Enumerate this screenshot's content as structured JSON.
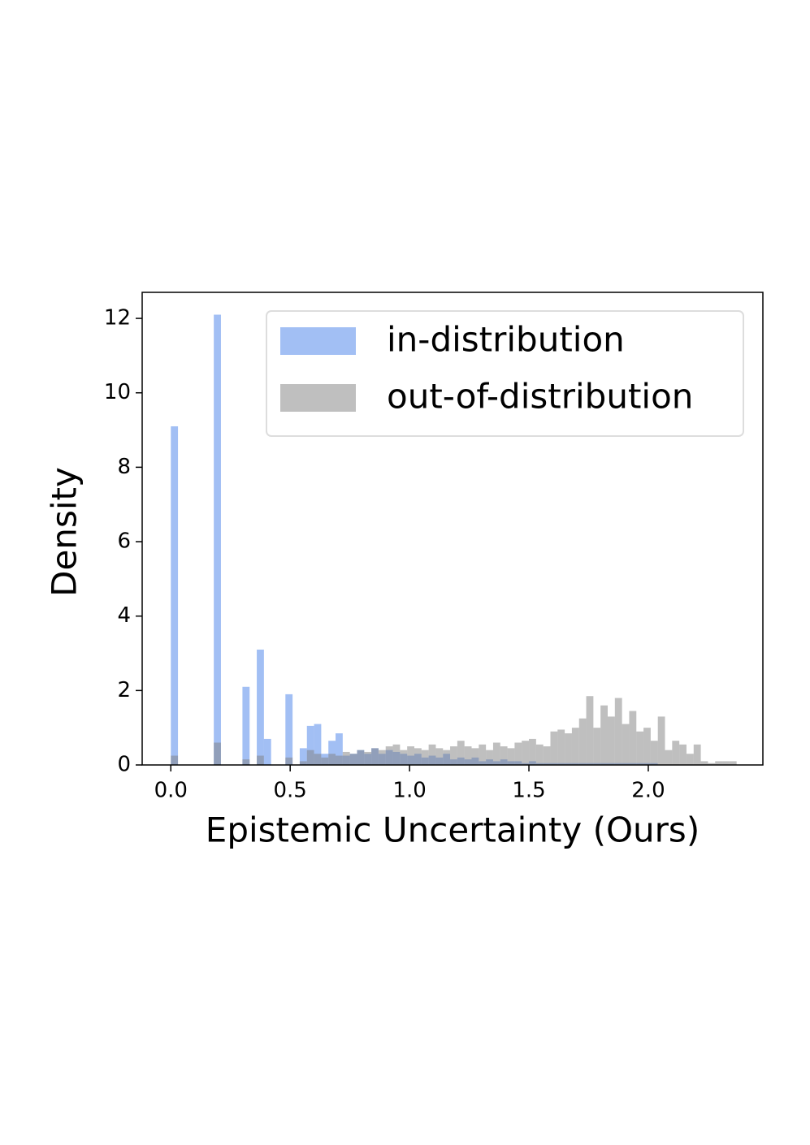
{
  "chart_data": {
    "type": "histogram",
    "xlabel": "Epistemic Uncertainty (Ours)",
    "ylabel": "Density",
    "bins": [
      0,
      0.03,
      0.06,
      0.09,
      0.12,
      0.15,
      0.18,
      0.21,
      0.24,
      0.27,
      0.3,
      0.33,
      0.36,
      0.39,
      0.42,
      0.45,
      0.48,
      0.51,
      0.54,
      0.57,
      0.6,
      0.63,
      0.66,
      0.69,
      0.72,
      0.75,
      0.78,
      0.81,
      0.84,
      0.87,
      0.9,
      0.93,
      0.96,
      0.99,
      1.02,
      1.05,
      1.08,
      1.11,
      1.14,
      1.17,
      1.2,
      1.23,
      1.26,
      1.29,
      1.32,
      1.35,
      1.38,
      1.41,
      1.44,
      1.47,
      1.5,
      1.53,
      1.56,
      1.59,
      1.62,
      1.65,
      1.68,
      1.71,
      1.74,
      1.77,
      1.8,
      1.83,
      1.86,
      1.89,
      1.92,
      1.95,
      1.98,
      2.01,
      2.04,
      2.07,
      2.1,
      2.13,
      2.16,
      2.19,
      2.22,
      2.25,
      2.28,
      2.31,
      2.34,
      2.37,
      2.4
    ],
    "series": [
      {
        "name": "in-distribution",
        "color": "#6495ed",
        "opacity": 0.6,
        "values": [
          9.1,
          0,
          0,
          0,
          0,
          0,
          12.1,
          0,
          0,
          0,
          2.1,
          0,
          3.1,
          0.7,
          0,
          0,
          1.9,
          0,
          0.45,
          1.05,
          1.1,
          0.3,
          0.65,
          0.85,
          0.25,
          0.3,
          0.4,
          0.3,
          0.45,
          0.3,
          0.4,
          0.35,
          0.3,
          0.25,
          0.3,
          0.2,
          0.25,
          0.2,
          0.3,
          0.15,
          0.2,
          0.15,
          0.2,
          0.1,
          0.15,
          0.1,
          0.15,
          0.1,
          0.1,
          0.05,
          0.1,
          0.05,
          0.05,
          0.05,
          0.05,
          0.05,
          0.05,
          0.05,
          0.05,
          0.05,
          0.05,
          0.05,
          0.05,
          0.05,
          0.05,
          0.05,
          0.05,
          0.05,
          0,
          0,
          0,
          0,
          0,
          0,
          0,
          0,
          0,
          0,
          0,
          0
        ]
      },
      {
        "name": "out-of-distribution",
        "color": "#808080",
        "opacity": 0.5,
        "values": [
          0.25,
          0,
          0,
          0,
          0,
          0,
          0.6,
          0,
          0,
          0,
          0.15,
          0,
          0.25,
          0,
          0,
          0,
          0.2,
          0,
          0.1,
          0.4,
          0.3,
          0.2,
          0.3,
          0.25,
          0.35,
          0.3,
          0.4,
          0.35,
          0.45,
          0.4,
          0.5,
          0.55,
          0.4,
          0.5,
          0.45,
          0.4,
          0.55,
          0.45,
          0.4,
          0.5,
          0.65,
          0.5,
          0.45,
          0.55,
          0.4,
          0.6,
          0.5,
          0.45,
          0.6,
          0.65,
          0.7,
          0.55,
          0.5,
          0.9,
          0.95,
          0.85,
          1.0,
          1.25,
          1.85,
          1.0,
          1.6,
          1.3,
          1.8,
          1.1,
          1.45,
          0.9,
          1.0,
          0.65,
          1.3,
          0.4,
          0.65,
          0.55,
          0.3,
          0.55,
          0.1,
          0.05,
          0.1,
          0.1,
          0.1,
          0
        ]
      }
    ],
    "xlim": [
      -0.12,
      2.48
    ],
    "xticks": [
      {
        "value": 0,
        "label": "0.0"
      },
      0.5,
      {
        "value": 1,
        "label": "1.0"
      },
      1.5,
      {
        "value": 2,
        "label": "2.0"
      }
    ],
    "ylim": [
      0,
      12.7
    ],
    "yticks": [
      0,
      2,
      4,
      6,
      8,
      10,
      12
    ],
    "legend": "upper right",
    "grid": false
  }
}
